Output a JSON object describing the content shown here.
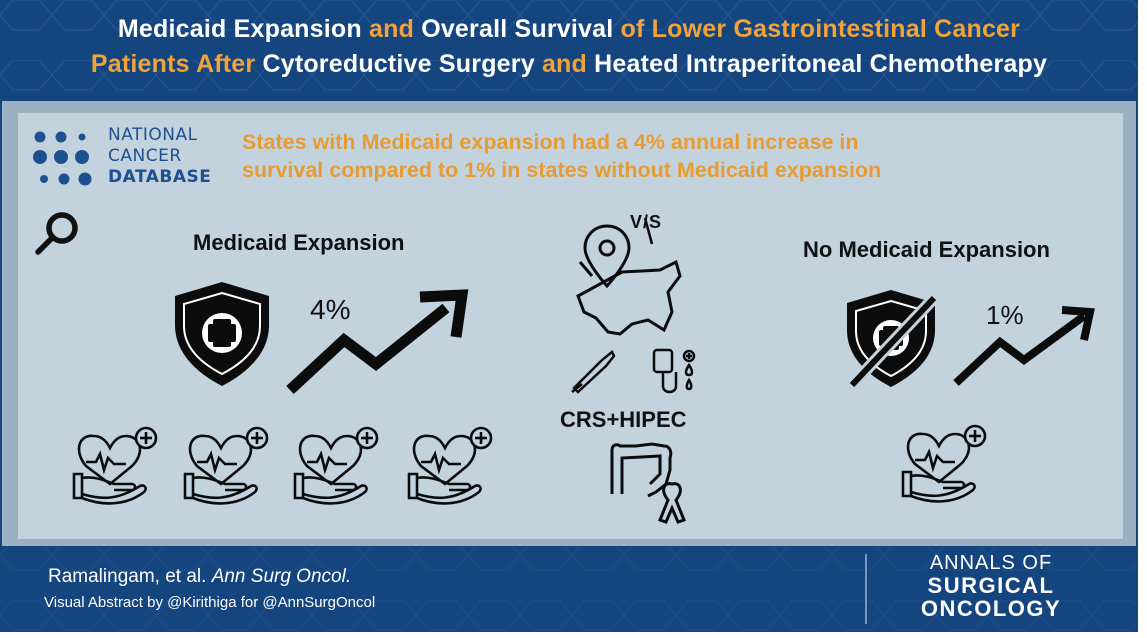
{
  "header": {
    "title_line1": [
      {
        "text": "Medicaid Expansion",
        "style": "white"
      },
      {
        "text": " and ",
        "style": "orange"
      },
      {
        "text": "Overall Survival",
        "style": "white"
      },
      {
        "text": " of Lower Gastrointestinal Cancer",
        "style": "orange"
      }
    ],
    "title_line2": [
      {
        "text": "Patients After",
        "style": "orange"
      },
      {
        "text": " Cytoreductive Surgery ",
        "style": "white"
      },
      {
        "text": "and",
        "style": "orange"
      },
      {
        "text": " Heated Intraperitoneal Chemotherapy",
        "style": "white"
      }
    ]
  },
  "source_logo": {
    "line1": "NATIONAL",
    "line2": "CANCER",
    "line3": "DATABASE"
  },
  "finding": {
    "line1": "States with Medicaid expansion had a 4% annual increase in",
    "line2": "survival compared to 1% in states without Medicaid expansion"
  },
  "left_group": {
    "label": "Medicaid Expansion",
    "rate": "4%",
    "icon_count": 4
  },
  "center": {
    "vs_label": "V/S",
    "procedure": "CRS+HIPEC"
  },
  "right_group": {
    "label": "No Medicaid Expansion",
    "rate": "1%",
    "icon_count": 1
  },
  "footer": {
    "authors": "Ramalingam, et al.",
    "journal_cite": "Ann Surg Oncol.",
    "credit": "Visual Abstract by @Kirithiga for @AnnSurgOncol",
    "journal_line1": "ANNALS OF",
    "journal_line2": "SURGICAL",
    "journal_line3": "ONCOLOGY"
  },
  "colors": {
    "navy": "#15457E",
    "panel": "#C3D3DE",
    "orange": "#F2A23A",
    "ink": "#111111"
  }
}
